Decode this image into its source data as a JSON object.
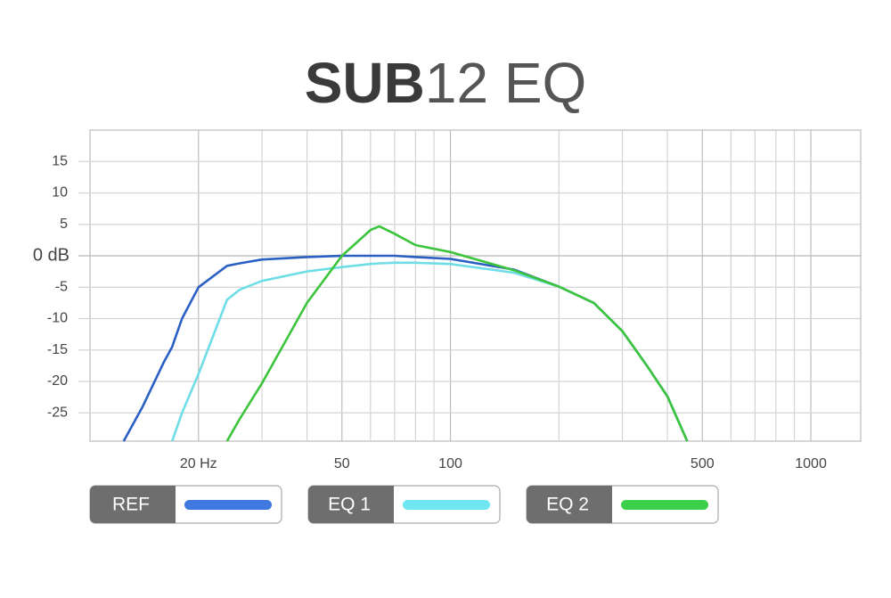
{
  "chart_data": {
    "type": "line",
    "title": [
      "SUB",
      "12 EQ"
    ],
    "x": [
      12.4,
      14,
      16,
      16.9,
      18,
      20,
      24,
      26,
      30,
      40,
      50,
      60,
      63.5,
      70,
      80,
      100,
      150,
      200,
      250,
      300,
      350,
      400,
      454
    ],
    "series": [
      {
        "name": "REF",
        "color": "#2a5fc4",
        "legend_color": "#3f78e0",
        "values": [
          -29.5,
          -24,
          -17,
          -14.5,
          -10,
          -5,
          -1.6,
          -1.2,
          -0.6,
          -0.2,
          0,
          0,
          0,
          0,
          -0.2,
          -0.5,
          -2.2,
          -4.9,
          -7.5,
          -12,
          -17.4,
          -22.4,
          -29.5
        ]
      },
      {
        "name": "EQ 1",
        "color": "#6fdde6",
        "legend_color": "#6fe6f2",
        "values": [
          null,
          null,
          null,
          -29.5,
          -25,
          -18.8,
          -7,
          -5.4,
          -4,
          -2.5,
          -1.8,
          -1.3,
          -1.2,
          -1.1,
          -1.1,
          -1.3,
          -2.7,
          -4.9,
          -7.5,
          -12,
          -17.4,
          -22.4,
          -29.5
        ]
      },
      {
        "name": "EQ 2",
        "color": "#3cc43c",
        "legend_color": "#3ccf4a",
        "values": [
          null,
          null,
          null,
          null,
          null,
          null,
          -29.5,
          -26,
          -20.3,
          -7.5,
          0,
          4.1,
          4.7,
          3.5,
          1.7,
          0.6,
          -2.3,
          -4.9,
          -7.5,
          -12,
          -17.4,
          -22.4,
          -29.5
        ]
      }
    ],
    "log_x": true,
    "xlim": [
      10,
      1375
    ],
    "xticks": [
      {
        "value": 20,
        "label": "20 Hz"
      },
      50,
      100,
      500,
      1000
    ],
    "x_minor_grid": [
      30,
      40,
      60,
      70,
      80,
      90,
      200,
      300,
      400,
      600,
      700,
      800,
      900
    ],
    "ylim": [
      -29.5,
      20
    ],
    "yticks": [
      15,
      10,
      5,
      {
        "value": 0,
        "label": "0 dB"
      },
      -5,
      -10,
      -15,
      -20,
      -25
    ],
    "grid": true
  }
}
